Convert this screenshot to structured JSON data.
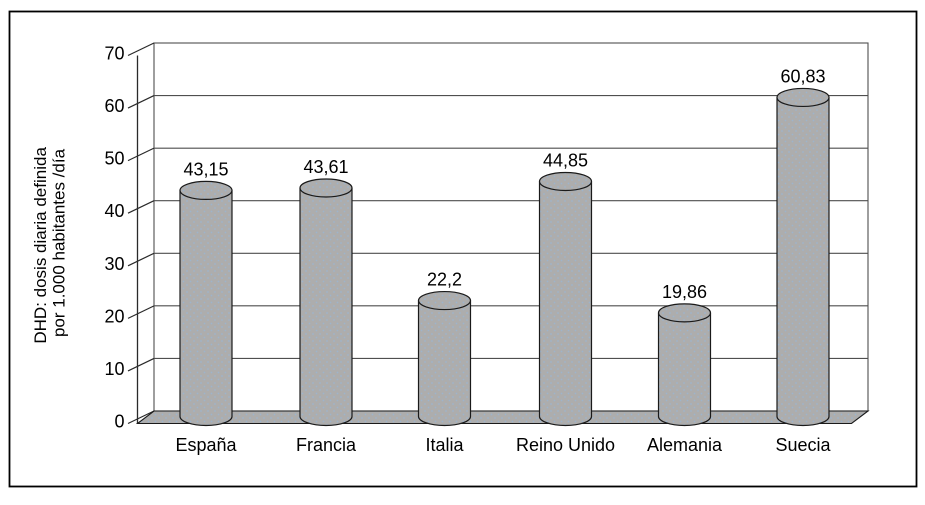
{
  "chart_data": {
    "type": "bar",
    "variant": "3d-cylinder",
    "title": "",
    "categories": [
      "España",
      "Francia",
      "Italia",
      "Reino Unido",
      "Alemania",
      "Suecia"
    ],
    "values": [
      43.15,
      43.61,
      22.2,
      44.85,
      19.86,
      60.83
    ],
    "value_labels": [
      "43,15",
      "43,61",
      "22,2",
      "44,85",
      "19,86",
      "60,83"
    ],
    "xlabel": "",
    "ylabel_line1": "DHD: dosis diaria definida",
    "ylabel_line2": "por 1.000 habitantes /día",
    "ylim": [
      0,
      70
    ],
    "ytick_interval": 10,
    "ytick_labels": [
      "0",
      "10",
      "20",
      "30",
      "40",
      "50",
      "60",
      "70"
    ],
    "grid": true,
    "legend": false,
    "colors": {
      "bar_fill": "#adadad",
      "bar_dot": "#9db4cc",
      "outline": "#1a1a1a",
      "gridline": "#4f4f4f",
      "axis": "#2a2a2a",
      "background": "#ffffff",
      "frame_border": "#000000"
    }
  }
}
